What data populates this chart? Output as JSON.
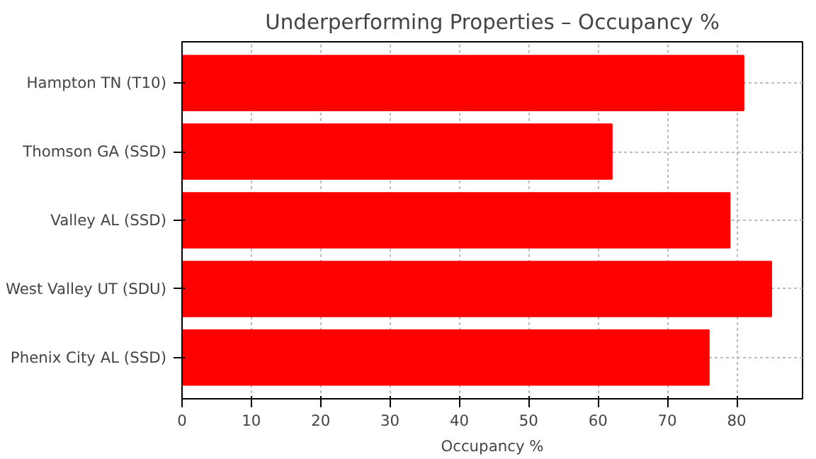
{
  "chart_data": {
    "type": "bar",
    "orientation": "horizontal",
    "title": "Underperforming Properties – Occupancy %",
    "xlabel": "Occupancy %",
    "categories": [
      "Hampton TN (T10)",
      "Thomson GA (SSD)",
      "Valley AL (SSD)",
      "West Valley UT (SDU)",
      "Phenix City AL (SSD)"
    ],
    "values": [
      81,
      62,
      79,
      85,
      76
    ],
    "color": "#ff0000",
    "xlim": [
      0,
      89.5
    ],
    "xticks": [
      0,
      10,
      20,
      30,
      40,
      50,
      60,
      70,
      80
    ],
    "grid": true
  }
}
